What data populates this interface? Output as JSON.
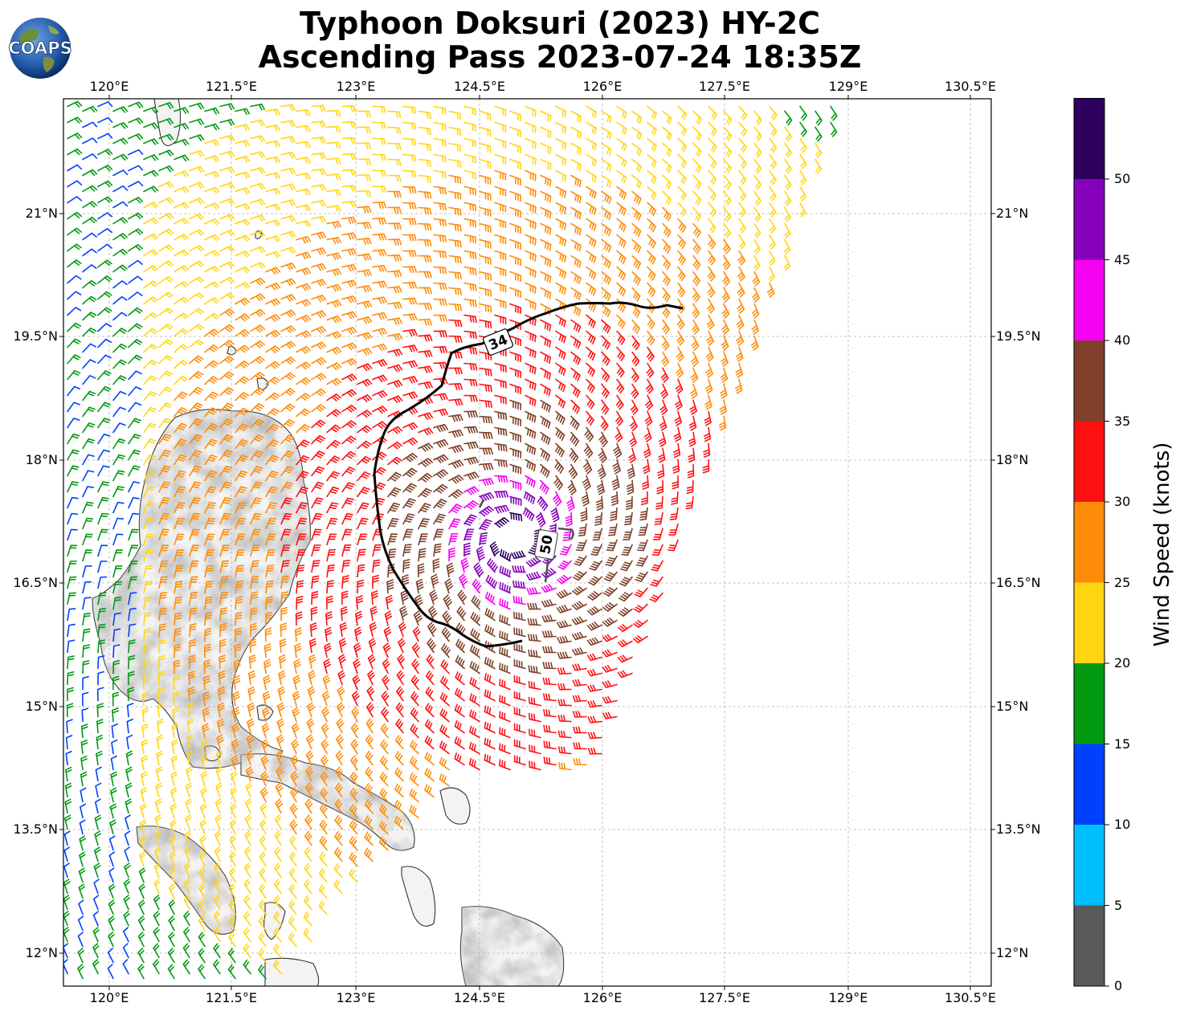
{
  "header": {
    "title_line1": "Typhoon Doksuri (2023) HY-2C",
    "title_line2": "Ascending Pass 2023-07-24 18:35Z",
    "logo_text": "COAPS"
  },
  "map": {
    "lon_ticks": [
      "120°E",
      "121.5°E",
      "123°E",
      "124.5°E",
      "126°E",
      "127.5°E",
      "129°E",
      "130.5°E"
    ],
    "lat_ticks": [
      "21°N",
      "19.5°N",
      "18°N",
      "16.5°N",
      "15°N",
      "13.5°N",
      "12°N"
    ],
    "contours": [
      {
        "label": "34",
        "color": "#000000"
      },
      {
        "label": "50",
        "color": "#555555"
      }
    ]
  },
  "colorbar": {
    "label": "Wind Speed (knots)",
    "ticks": [
      "0",
      "5",
      "10",
      "15",
      "20",
      "25",
      "30",
      "35",
      "40",
      "45",
      "50"
    ],
    "colors": [
      "#595959",
      "#00bfff",
      "#0040ff",
      "#00990f",
      "#ffd60f",
      "#ff8c08",
      "#ff1010",
      "#7f3f2a",
      "#f500f0",
      "#8600ba",
      "#2e005e"
    ]
  }
}
